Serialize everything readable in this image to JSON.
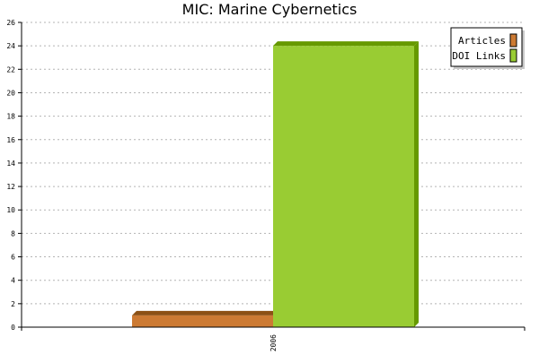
{
  "chart_data": {
    "type": "bar",
    "title": "MIC: Marine Cybernetics",
    "categories": [
      "2006"
    ],
    "series": [
      {
        "name": "Articles",
        "values": [
          1
        ],
        "color": "#cc7a33",
        "side_color": "#8c5014"
      },
      {
        "name": "DOI Links",
        "values": [
          24
        ],
        "color": "#99cc33",
        "side_color": "#669900"
      }
    ],
    "ylim": [
      0,
      26
    ],
    "yticks": [
      0,
      2,
      4,
      6,
      8,
      10,
      12,
      14,
      16,
      18,
      20,
      22,
      24,
      26
    ],
    "grid": true,
    "legend_position": "top-right",
    "xlabel": "",
    "ylabel": ""
  }
}
